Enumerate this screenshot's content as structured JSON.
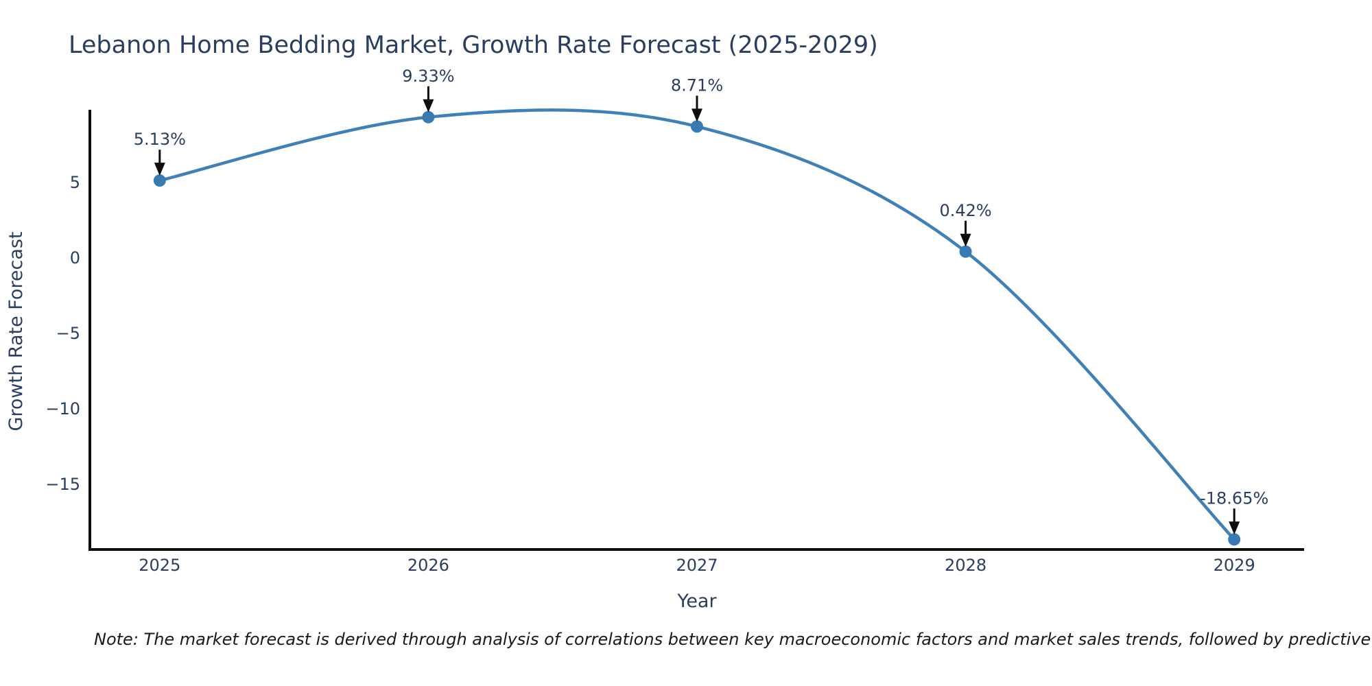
{
  "title": "Lebanon Home Bedding Market, Growth Rate Forecast (2025-2029)",
  "footnote": "Note: The market forecast is derived through analysis of correlations between key macroeconomic factors and market sales trends, followed by predictive modeling to project future sales",
  "chart_data": {
    "type": "line",
    "line_shape": "spline",
    "title": "Lebanon Home Bedding Market, Growth Rate Forecast (2025-2029)",
    "xlabel": "Year",
    "ylabel": "Growth Rate Forecast",
    "x": [
      2025,
      2026,
      2027,
      2028,
      2029
    ],
    "categories": [
      "2025",
      "2026",
      "2027",
      "2028",
      "2029"
    ],
    "series": [
      {
        "name": "Growth Rate Forecast",
        "values": [
          5.13,
          9.33,
          8.71,
          0.42,
          -18.65
        ]
      }
    ],
    "point_labels": [
      "5.13%",
      "9.33%",
      "8.71%",
      "0.42%",
      "-18.65%"
    ],
    "y_tick_values": [
      5,
      0,
      -5,
      -10,
      -15
    ],
    "y_tick_labels": [
      "5",
      "0",
      "−5",
      "−10",
      "−15"
    ],
    "xlim": [
      2024.74,
      2029.26
    ],
    "ylim": [
      -19.32,
      9.82
    ],
    "grid": false,
    "legend_position": "none",
    "marker": "circle",
    "annotations_arrow": "down",
    "colors": {
      "line": "#4080b8",
      "marker": "#3a7ab2",
      "axis_line": "#0d0d0d",
      "arrow": "#0d0d0d",
      "label_text": "#2a3f5f",
      "note_text": "#1a1a1a",
      "background": "#ffffff"
    }
  }
}
